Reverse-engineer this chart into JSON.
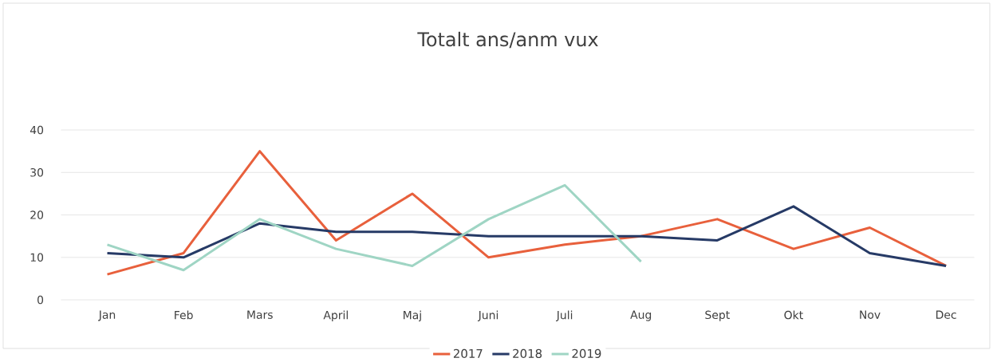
{
  "chart_data": {
    "type": "line",
    "title": "Totalt ans/anm vux",
    "categories": [
      "Jan",
      "Feb",
      "Mars",
      "April",
      "Maj",
      "Juni",
      "Juli",
      "Aug",
      "Sept",
      "Okt",
      "Nov",
      "Dec"
    ],
    "series": [
      {
        "name": "2017",
        "color": "#e8603c",
        "values": [
          6,
          11,
          35,
          14,
          25,
          10,
          13,
          15,
          19,
          12,
          17,
          8
        ]
      },
      {
        "name": "2018",
        "color": "#263a66",
        "values": [
          11,
          10,
          18,
          16,
          16,
          15,
          15,
          15,
          14,
          22,
          11,
          8
        ]
      },
      {
        "name": "2019",
        "color": "#9fd5c4",
        "values": [
          13,
          7,
          19,
          12,
          8,
          19,
          27,
          9,
          null,
          null,
          null,
          null
        ]
      }
    ],
    "ylim": [
      0,
      40
    ],
    "yticks": [
      0,
      10,
      20,
      30,
      40
    ],
    "grid": "y",
    "legend": "bottom",
    "marker": "none",
    "line_style": "solid"
  }
}
